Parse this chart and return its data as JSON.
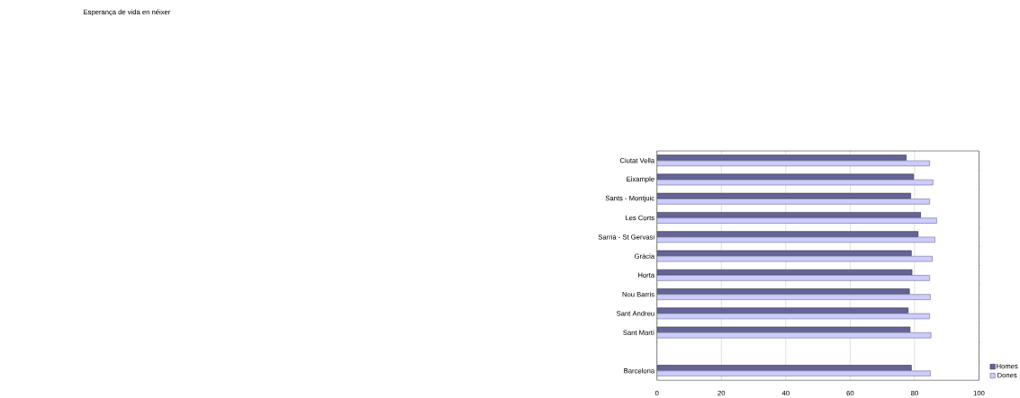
{
  "chart_data": {
    "type": "bar",
    "orientation": "horizontal",
    "title": "Esperança de vida en néixer",
    "categories": [
      "Ciutat Vella",
      "Eixample",
      "Sants - Montjuic",
      "Les Corts",
      "Sarrià - St Gervasi",
      "Gràcia",
      "Horta",
      "Nou Barris",
      "Sant Andreu",
      "Sant Martí",
      null,
      "Barcelona"
    ],
    "series": [
      {
        "name": "Homes",
        "color": "#646496",
        "values": [
          77.4,
          79.7,
          78.8,
          81.9,
          81.1,
          79.0,
          79.2,
          78.4,
          78.0,
          78.6,
          null,
          79.0
        ]
      },
      {
        "name": "Dones",
        "color": "#ccccff",
        "values": [
          84.7,
          85.7,
          84.7,
          86.9,
          86.3,
          85.5,
          84.7,
          84.9,
          84.7,
          85.1,
          null,
          84.9
        ]
      }
    ],
    "xlim": [
      0,
      100
    ],
    "xticks": [
      0,
      20,
      40,
      60,
      80,
      100
    ],
    "grid": "x",
    "legend": "bottom right"
  }
}
